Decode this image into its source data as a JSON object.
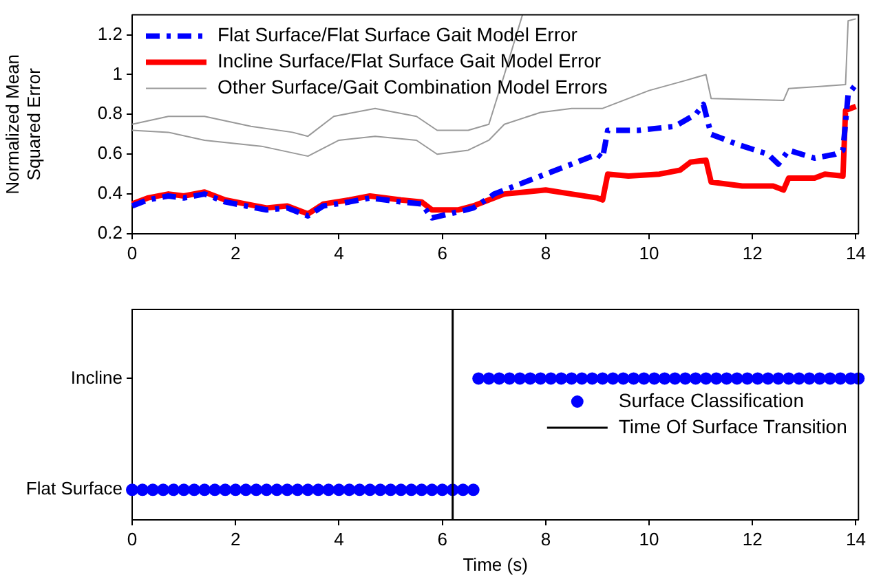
{
  "chart_data": [
    {
      "type": "line",
      "ylabel": "Normalized Mean Squared Error",
      "xlim": [
        0,
        14.05
      ],
      "xticks": [
        0,
        2,
        4,
        6,
        8,
        10,
        12,
        14
      ],
      "ylim": [
        0.2,
        1.3
      ],
      "yticks": [
        0.2,
        0.4,
        0.6,
        0.8,
        1,
        1.2
      ],
      "legend": "top left",
      "series": [
        {
          "name": "Flat Surface/Flat Surface Gait Model Error",
          "color": "#0000ff",
          "line_style": "dashed",
          "x": [
            0,
            0.3,
            0.7,
            1.0,
            1.4,
            1.8,
            2.2,
            2.6,
            3.0,
            3.4,
            3.7,
            4.2,
            4.6,
            5.2,
            5.6,
            5.8,
            6.3,
            6.6,
            6.9,
            7.0,
            7.5,
            8,
            8.5,
            9.0,
            9.1,
            9.2,
            9.8,
            10.5,
            10.9,
            11.05,
            11.2,
            11.7,
            12.3,
            12.5,
            12.7,
            13.2,
            13.6,
            13.75,
            13.85,
            14
          ],
          "values": [
            0.34,
            0.37,
            0.39,
            0.38,
            0.4,
            0.36,
            0.34,
            0.32,
            0.33,
            0.29,
            0.34,
            0.36,
            0.38,
            0.36,
            0.35,
            0.28,
            0.31,
            0.33,
            0.38,
            0.4,
            0.45,
            0.5,
            0.55,
            0.6,
            0.58,
            0.72,
            0.72,
            0.74,
            0.8,
            0.85,
            0.7,
            0.65,
            0.6,
            0.55,
            0.62,
            0.58,
            0.6,
            0.62,
            0.9,
            0.95
          ]
        },
        {
          "name": "Incline Surface/Flat Surface Gait Model Error",
          "color": "#ff0000",
          "line_style": "solid",
          "x": [
            0,
            0.3,
            0.7,
            1.0,
            1.4,
            1.8,
            2.2,
            2.6,
            3.0,
            3.4,
            3.7,
            4.2,
            4.6,
            5.2,
            5.6,
            5.8,
            6.3,
            6.6,
            6.9,
            7.2,
            7.6,
            8.0,
            8.5,
            9.0,
            9.1,
            9.2,
            9.6,
            10.2,
            10.6,
            10.8,
            11.1,
            11.2,
            11.8,
            12.4,
            12.6,
            12.7,
            13.2,
            13.4,
            13.75,
            13.8,
            14
          ],
          "values": [
            0.35,
            0.38,
            0.4,
            0.39,
            0.41,
            0.37,
            0.35,
            0.33,
            0.34,
            0.3,
            0.35,
            0.37,
            0.39,
            0.37,
            0.36,
            0.32,
            0.32,
            0.34,
            0.37,
            0.4,
            0.41,
            0.42,
            0.4,
            0.38,
            0.37,
            0.5,
            0.49,
            0.5,
            0.52,
            0.56,
            0.57,
            0.46,
            0.44,
            0.44,
            0.42,
            0.48,
            0.48,
            0.5,
            0.49,
            0.82,
            0.84
          ]
        },
        {
          "name": "Other Surface/Gait Combination Model Errors",
          "color": "#999999",
          "line_style": "solid",
          "x": [
            0,
            0.7,
            1.4,
            2.5,
            3.4,
            4.0,
            4.7,
            5.5,
            5.9,
            6.5,
            6.9,
            7.2,
            7.9,
            8.5,
            9.1,
            10.0,
            10.7,
            11.1,
            11.2,
            12.6,
            12.7,
            13.3,
            13.8,
            13.85,
            14
          ],
          "values": [
            0.72,
            0.71,
            0.67,
            0.64,
            0.59,
            0.67,
            0.69,
            0.67,
            0.6,
            0.62,
            0.67,
            0.75,
            0.81,
            0.83,
            0.83,
            0.92,
            0.97,
            1.0,
            0.88,
            0.87,
            0.93,
            0.94,
            0.95,
            1.27,
            1.28
          ]
        },
        {
          "color": "#999999",
          "line_style": "solid",
          "x": [
            0,
            0.7,
            1.4,
            2.3,
            3.1,
            3.4,
            3.9,
            4.7,
            5.5,
            5.9,
            6.5,
            6.9,
            7.2,
            7.55
          ],
          "values": [
            0.75,
            0.79,
            0.79,
            0.74,
            0.71,
            0.69,
            0.79,
            0.83,
            0.79,
            0.72,
            0.72,
            0.75,
            1.0,
            1.3
          ]
        }
      ]
    },
    {
      "type": "scatter",
      "orientation": "horizontal",
      "xlabel": "Time (s)",
      "xlim": [
        0,
        14.05
      ],
      "xticks": [
        0,
        2,
        4,
        6,
        8,
        10,
        12,
        14
      ],
      "categories": [
        "Incline",
        "Flat Surface"
      ],
      "legend": "right",
      "marker": "circle",
      "series": [
        {
          "name": "Surface Classification",
          "color": "#0000ff",
          "x": [
            "Flat Surface",
            "Flat Surface",
            "Flat Surface",
            "Flat Surface",
            "Flat Surface",
            "Flat Surface",
            "Flat Surface",
            "Flat Surface",
            "Flat Surface",
            "Flat Surface",
            "Flat Surface",
            "Flat Surface",
            "Flat Surface",
            "Flat Surface",
            "Flat Surface",
            "Flat Surface",
            "Flat Surface",
            "Flat Surface",
            "Flat Surface",
            "Flat Surface",
            "Flat Surface",
            "Flat Surface",
            "Flat Surface",
            "Flat Surface",
            "Flat Surface",
            "Flat Surface",
            "Flat Surface",
            "Flat Surface",
            "Flat Surface",
            "Flat Surface",
            "Flat Surface",
            "Flat Surface",
            "Flat Surface",
            "Flat Surface",
            "Incline",
            "Incline",
            "Incline",
            "Incline",
            "Incline",
            "Incline",
            "Incline",
            "Incline",
            "Incline",
            "Incline",
            "Incline",
            "Incline",
            "Incline",
            "Incline",
            "Incline",
            "Incline",
            "Incline",
            "Incline",
            "Incline",
            "Incline",
            "Incline",
            "Incline",
            "Incline",
            "Incline",
            "Incline",
            "Incline",
            "Incline",
            "Incline",
            "Incline",
            "Incline",
            "Incline",
            "Incline",
            "Incline",
            "Incline",
            "Incline",
            "Incline",
            "Incline",
            "Incline"
          ],
          "values": [
            0,
            0.2,
            0.4,
            0.6,
            0.8,
            1.0,
            1.2,
            1.4,
            1.6,
            1.8,
            2.0,
            2.2,
            2.4,
            2.6,
            2.8,
            3.0,
            3.2,
            3.4,
            3.6,
            3.8,
            4.0,
            4.2,
            4.4,
            4.6,
            4.8,
            5.0,
            5.2,
            5.4,
            5.6,
            5.8,
            6.0,
            6.2,
            6.4,
            6.6,
            6.7,
            6.9,
            7.1,
            7.3,
            7.5,
            7.7,
            7.9,
            8.1,
            8.3,
            8.5,
            8.7,
            8.9,
            9.1,
            9.3,
            9.5,
            9.7,
            9.9,
            10.1,
            10.3,
            10.5,
            10.7,
            10.9,
            11.1,
            11.3,
            11.5,
            11.7,
            11.9,
            12.1,
            12.3,
            12.5,
            12.7,
            12.9,
            13.1,
            13.3,
            13.5,
            13.7,
            13.9,
            14.05
          ]
        }
      ],
      "ref_lines": [
        {
          "axis": "x",
          "value": 6.2,
          "label": "Time Of Surface Transition",
          "color": "#000000",
          "line_style": "solid"
        }
      ]
    }
  ]
}
